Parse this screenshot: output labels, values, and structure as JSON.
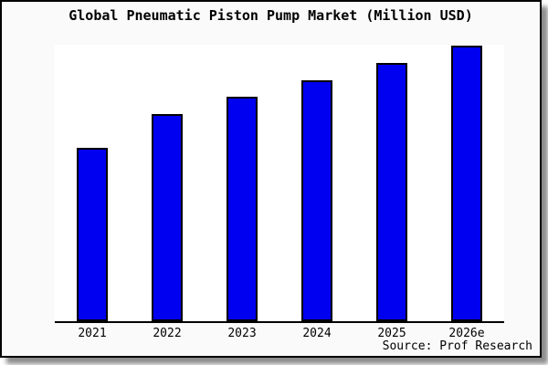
{
  "panel": {
    "background": "#fafafa",
    "plot_background": "#ffffff",
    "frame_color": "#000000",
    "shadow_color": "#777777"
  },
  "footer": {
    "source": "Source: Prof Research"
  },
  "chart_data": {
    "type": "bar",
    "title": "Global Pneumatic Piston Pump Market (Million USD)",
    "categories": [
      "2021",
      "2022",
      "2023",
      "2024",
      "2025",
      "2026e"
    ],
    "values": [
      190,
      227,
      246,
      264,
      283,
      302
    ],
    "value_note": "no y-axis ticks or data labels are shown in the source image; values are relative bar heights measured in pixels",
    "xlabel": "",
    "ylabel": "",
    "ylim": [
      0,
      303
    ],
    "grid": false,
    "legend": false,
    "x_axis_line_only": true,
    "bar_color": "#0000f0",
    "bar_border_color": "#000000",
    "axis_color": "#000000",
    "source": "Source: Prof Research"
  }
}
